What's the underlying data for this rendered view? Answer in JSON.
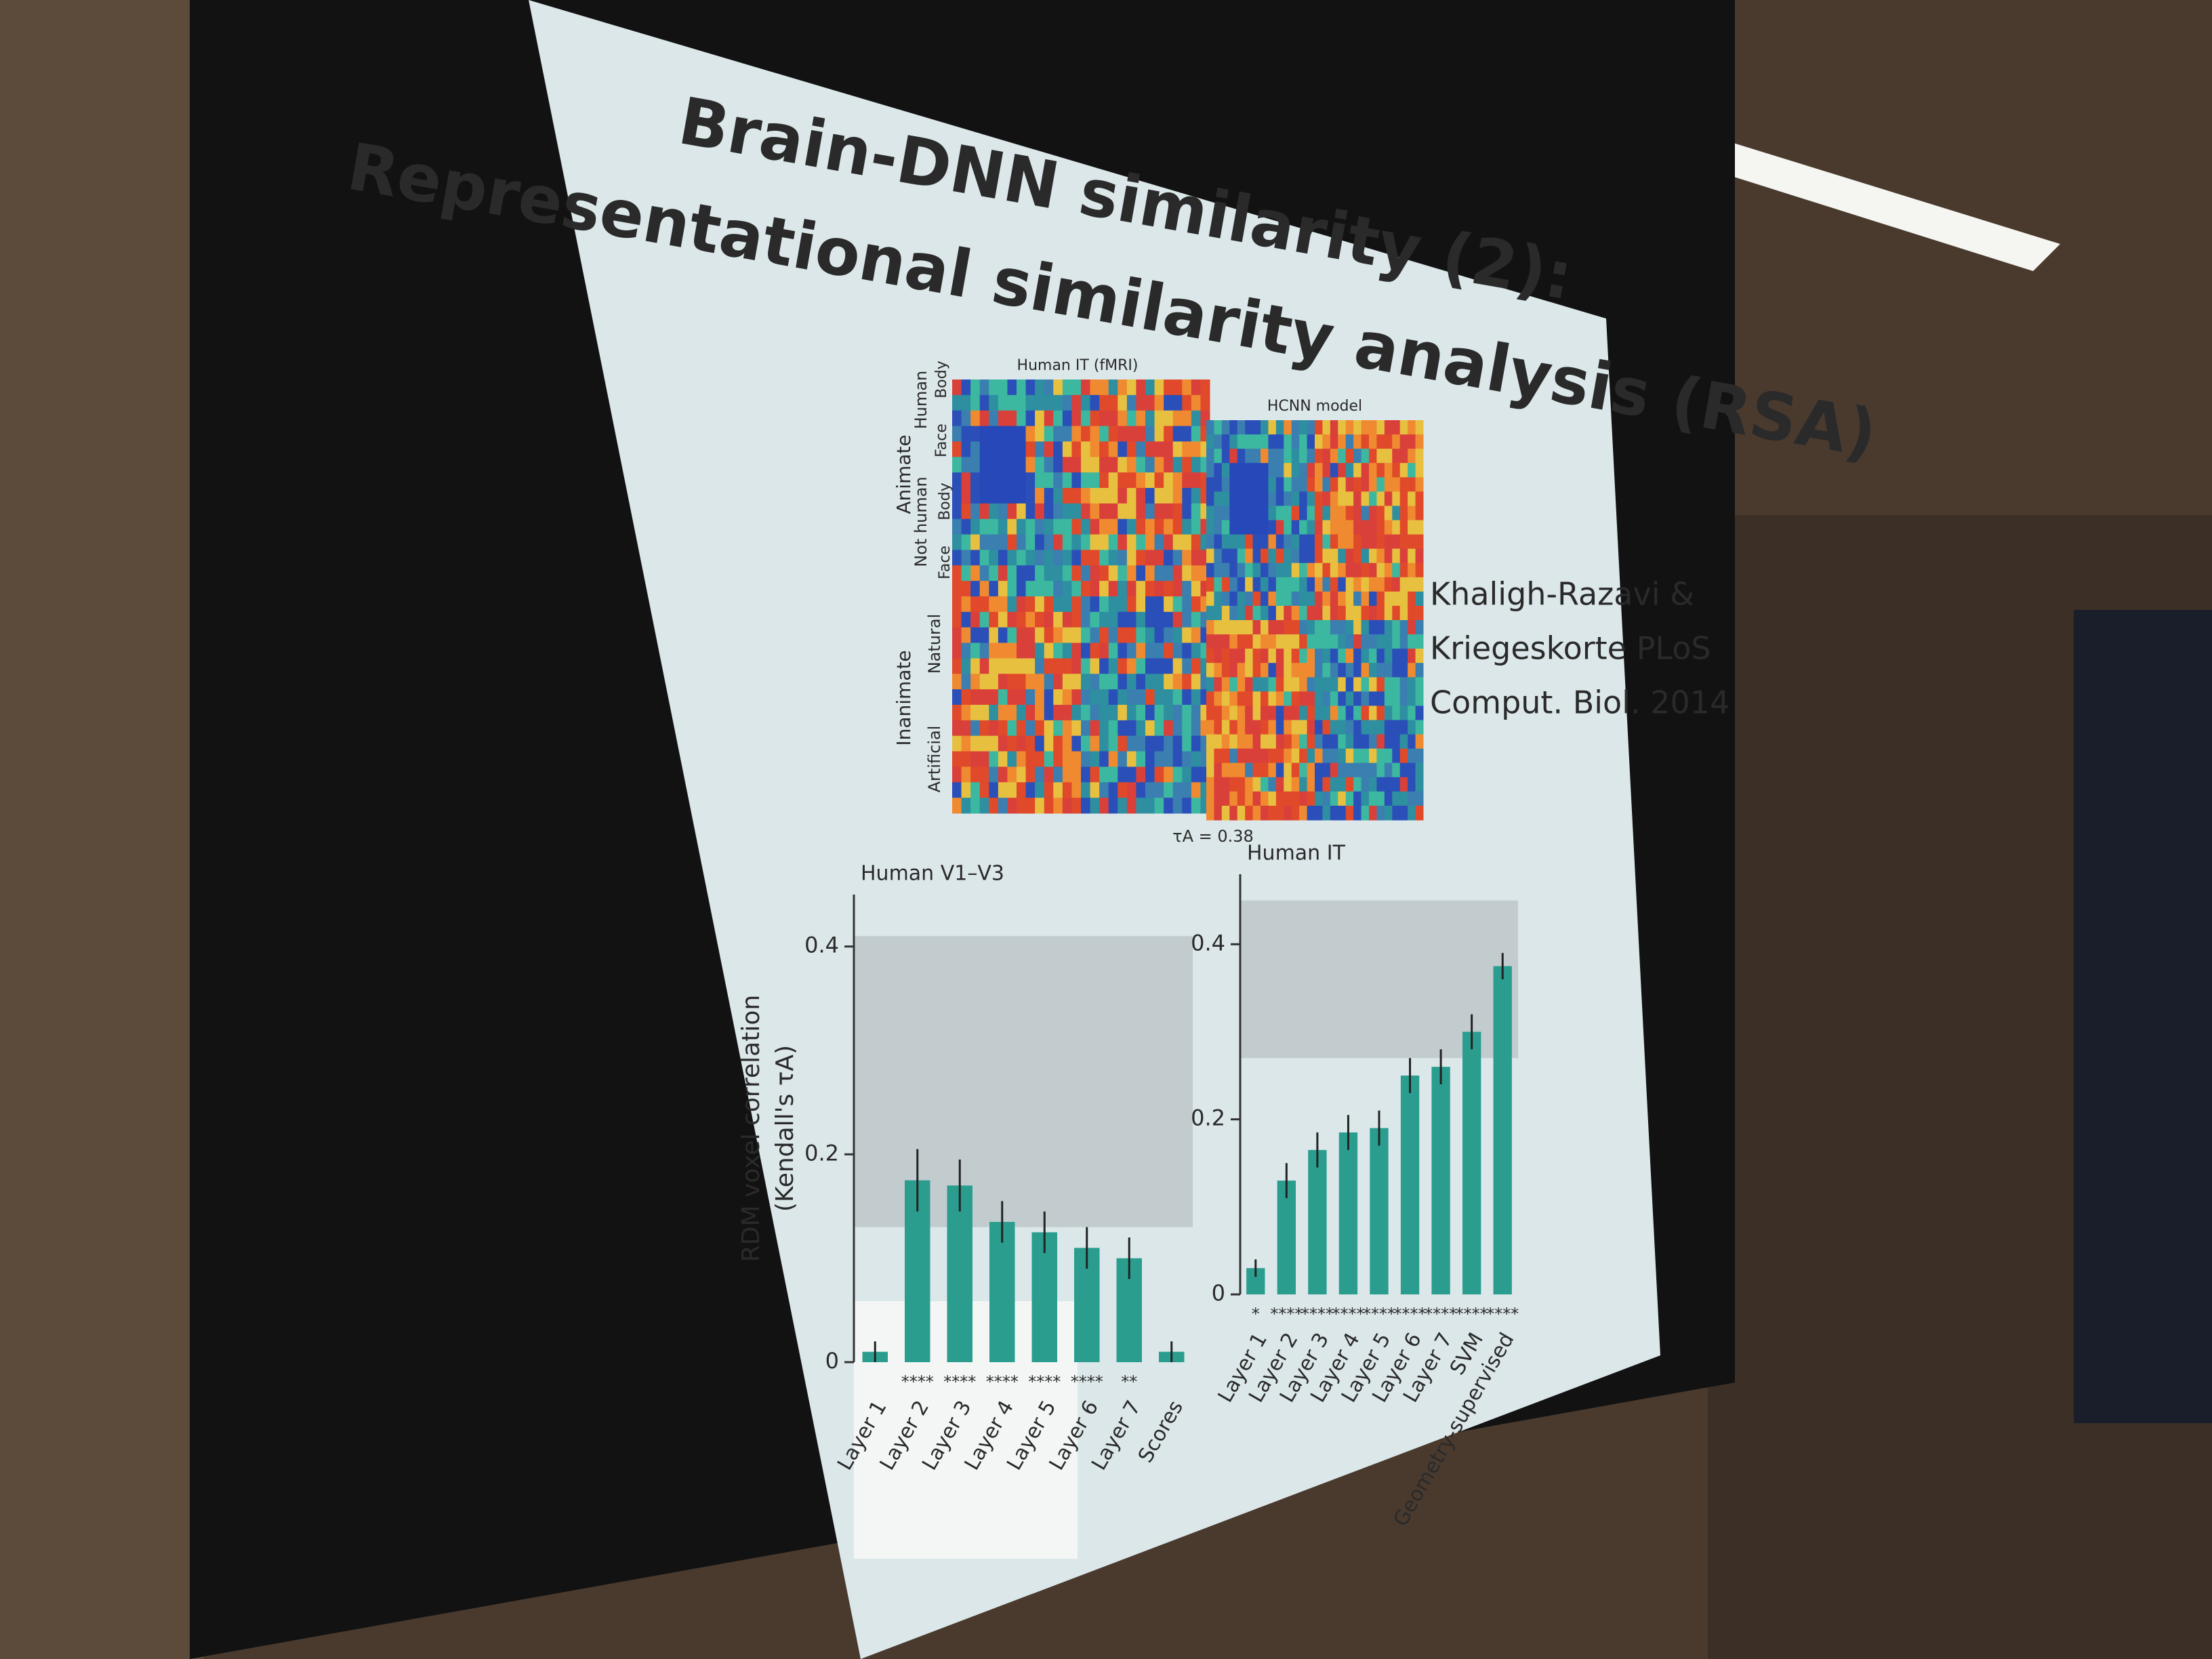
{
  "slide": {
    "title": [
      "Brain-DNN similarity (2):",
      "Representational similarity analysis (RSA)"
    ],
    "citation": [
      "Khaligh-Razavi &",
      "Kriegeskorte PLoS",
      "Comput. Biol. 2014"
    ],
    "rdm": {
      "left_title": "Human IT (fMRI)",
      "right_title": "HCNN model",
      "tau": "τA = 0.38",
      "groups": [
        "Animate",
        "Inanimate"
      ],
      "subgroups": [
        "Human",
        "Not human",
        "Natural",
        "Artificial"
      ],
      "parts": [
        "Body",
        "Face",
        "Body",
        "Face"
      ]
    }
  },
  "chart_data": [
    {
      "type": "bar",
      "title": "Human V1–V3",
      "y_label": [
        "RDM voxel correlation",
        "(Kendall's τA)"
      ],
      "categories": [
        "Layer 1",
        "Layer 2",
        "Layer 3",
        "Layer 4",
        "Layer 5",
        "Layer 6",
        "Layer 7",
        "Scores"
      ],
      "values": [
        0.01,
        0.175,
        0.17,
        0.135,
        0.125,
        0.11,
        0.1,
        0.01
      ],
      "errors": [
        0.01,
        0.03,
        0.025,
        0.02,
        0.02,
        0.02,
        0.02,
        0.01
      ],
      "significance": [
        null,
        "****",
        "****",
        "****",
        "****",
        "****",
        "**",
        null
      ],
      "noise_ceiling": [
        0.13,
        0.41
      ],
      "color": "#2a9d8f",
      "ylim": [
        0,
        0.45
      ],
      "yticks": [
        0,
        0.2,
        0.4
      ]
    },
    {
      "type": "bar",
      "title": "Human IT",
      "categories": [
        "Layer 1",
        "Layer 2",
        "Layer 3",
        "Layer 4",
        "Layer 5",
        "Layer 6",
        "Layer 7",
        "SVM",
        "Geometry-supervised"
      ],
      "values": [
        0.03,
        0.13,
        0.165,
        0.185,
        0.19,
        0.25,
        0.26,
        0.3,
        0.375
      ],
      "errors": [
        0.01,
        0.02,
        0.02,
        0.02,
        0.02,
        0.02,
        0.02,
        0.02,
        0.015
      ],
      "significance": [
        "*",
        "****",
        "****",
        "****",
        "****",
        "****",
        "****",
        "****",
        "****"
      ],
      "noise_ceiling": [
        0.27,
        0.45
      ],
      "color": "#2a9d8f",
      "ylim": [
        0,
        0.48
      ],
      "yticks": [
        0,
        0.2,
        0.4
      ]
    }
  ]
}
